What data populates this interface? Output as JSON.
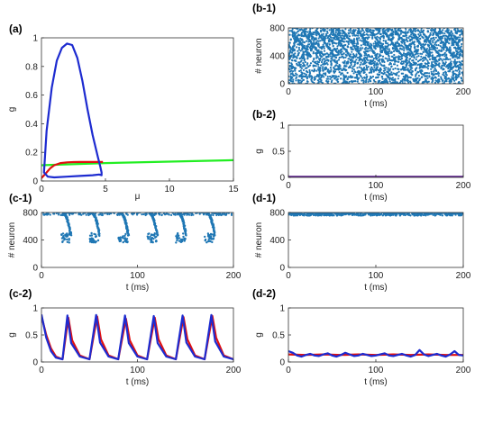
{
  "colors": {
    "blue": "#1d2bd0",
    "red": "#e01010",
    "green": "#22ee22",
    "dots": "#1f77b4",
    "purple": "#5a1b8c"
  },
  "chart_data": [
    {
      "id": "a",
      "panel_label": "(a)",
      "type": "line",
      "xlabel": "μ",
      "ylabel": "g",
      "xlim": [
        0,
        15
      ],
      "ylim": [
        0,
        1
      ],
      "xticks": [
        0,
        5,
        10,
        15
      ],
      "yticks": [
        0,
        0.2,
        0.4,
        0.6,
        0.8,
        1
      ],
      "series": [
        {
          "color_key": "green",
          "x": [
            0,
            5,
            10,
            15
          ],
          "y": [
            0.11,
            0.125,
            0.135,
            0.145
          ]
        },
        {
          "color_key": "red",
          "x": [
            0,
            0.3,
            0.7,
            1,
            1.5,
            2,
            2.5,
            3,
            4,
            4.8
          ],
          "y": [
            0.02,
            0.05,
            0.09,
            0.11,
            0.125,
            0.13,
            0.132,
            0.133,
            0.133,
            0.133
          ]
        },
        {
          "color_key": "blue",
          "closed": true,
          "x": [
            0.2,
            0.4,
            0.8,
            1.2,
            1.6,
            2.0,
            2.4,
            2.8,
            3.2,
            3.6,
            4.0,
            4.4,
            4.6,
            4.7,
            4.7,
            4.5,
            4.0,
            3.0,
            2.0,
            1.0,
            0.5,
            0.2
          ],
          "y": [
            0.06,
            0.35,
            0.65,
            0.84,
            0.93,
            0.96,
            0.95,
            0.86,
            0.7,
            0.5,
            0.32,
            0.17,
            0.1,
            0.06,
            0.04,
            0.045,
            0.04,
            0.035,
            0.03,
            0.025,
            0.03,
            0.06
          ]
        }
      ]
    },
    {
      "id": "b1",
      "panel_label": "(b-1)",
      "type": "scatter",
      "xlabel": "t (ms)",
      "ylabel": "# neuron",
      "xlim": [
        0,
        200
      ],
      "ylim": [
        0,
        800
      ],
      "xticks": [
        0,
        100,
        200
      ],
      "yticks": [
        0,
        400,
        800
      ],
      "pattern": "dense"
    },
    {
      "id": "b2",
      "panel_label": "(b-2)",
      "type": "line",
      "xlabel": "t (ms)",
      "ylabel": "g",
      "xlim": [
        0,
        200
      ],
      "ylim": [
        0,
        1
      ],
      "xticks": [
        0,
        100,
        200
      ],
      "yticks": [
        0,
        0.5,
        1
      ],
      "series": [
        {
          "color_key": "purple",
          "x": [
            0,
            200
          ],
          "y": [
            0.01,
            0.01
          ]
        }
      ]
    },
    {
      "id": "c1",
      "panel_label": "(c-1)",
      "type": "scatter",
      "xlabel": "t (ms)",
      "ylabel": "# neuron",
      "xlim": [
        0,
        200
      ],
      "ylim": [
        0,
        800
      ],
      "xticks": [
        0,
        100,
        200
      ],
      "yticks": [
        0,
        400,
        800
      ],
      "pattern": "bursts",
      "burst_times": [
        28,
        58,
        88,
        118,
        148,
        178
      ]
    },
    {
      "id": "c2",
      "panel_label": "(c-2)",
      "type": "line",
      "xlabel": "t (ms)",
      "ylabel": "g",
      "xlim": [
        0,
        200
      ],
      "ylim": [
        0,
        1
      ],
      "xticks": [
        0,
        100,
        200
      ],
      "yticks": [
        0,
        0.5,
        1
      ],
      "series": [
        {
          "color_key": "red",
          "x": [
            0,
            5,
            10,
            15,
            22,
            28,
            32,
            40,
            50,
            58,
            62,
            70,
            80,
            88,
            92,
            100,
            110,
            118,
            122,
            130,
            140,
            148,
            152,
            160,
            170,
            178,
            182,
            190,
            200
          ],
          "y": [
            0.85,
            0.5,
            0.25,
            0.1,
            0.05,
            0.82,
            0.4,
            0.12,
            0.05,
            0.84,
            0.42,
            0.12,
            0.05,
            0.8,
            0.4,
            0.12,
            0.05,
            0.82,
            0.42,
            0.12,
            0.05,
            0.83,
            0.42,
            0.12,
            0.05,
            0.85,
            0.45,
            0.12,
            0.05
          ]
        },
        {
          "color_key": "blue",
          "x": [
            0,
            5,
            10,
            15,
            22,
            27,
            31,
            40,
            50,
            57,
            61,
            70,
            80,
            87,
            91,
            100,
            110,
            117,
            121,
            130,
            140,
            147,
            151,
            160,
            170,
            177,
            181,
            190,
            200
          ],
          "y": [
            0.88,
            0.45,
            0.2,
            0.08,
            0.05,
            0.86,
            0.35,
            0.1,
            0.05,
            0.87,
            0.36,
            0.1,
            0.05,
            0.86,
            0.35,
            0.1,
            0.05,
            0.85,
            0.35,
            0.1,
            0.05,
            0.86,
            0.36,
            0.1,
            0.05,
            0.87,
            0.38,
            0.1,
            0.05
          ]
        }
      ]
    },
    {
      "id": "d1",
      "panel_label": "(d-1)",
      "type": "scatter",
      "xlabel": "t (ms)",
      "ylabel": "# neuron",
      "xlim": [
        0,
        200
      ],
      "ylim": [
        0,
        800
      ],
      "xticks": [
        0,
        100,
        200
      ],
      "yticks": [
        0,
        400,
        800
      ],
      "pattern": "band"
    },
    {
      "id": "d2",
      "panel_label": "(d-2)",
      "type": "line",
      "xlabel": "t (ms)",
      "ylabel": "g",
      "xlim": [
        0,
        200
      ],
      "ylim": [
        0,
        1
      ],
      "xticks": [
        0,
        100,
        200
      ],
      "yticks": [
        0,
        0.5,
        1
      ],
      "series": [
        {
          "color_key": "red",
          "x": [
            0,
            20,
            40,
            60,
            80,
            100,
            120,
            140,
            160,
            180,
            200
          ],
          "y": [
            0.14,
            0.13,
            0.14,
            0.13,
            0.14,
            0.13,
            0.14,
            0.13,
            0.14,
            0.13,
            0.13
          ]
        },
        {
          "color_key": "blue",
          "x": [
            0,
            5,
            10,
            15,
            20,
            25,
            30,
            35,
            40,
            45,
            50,
            55,
            60,
            65,
            70,
            75,
            80,
            85,
            90,
            95,
            100,
            105,
            110,
            115,
            120,
            125,
            130,
            135,
            140,
            145,
            150,
            155,
            160,
            165,
            170,
            175,
            180,
            185,
            190,
            195,
            200
          ],
          "y": [
            0.2,
            0.17,
            0.12,
            0.1,
            0.13,
            0.15,
            0.12,
            0.11,
            0.14,
            0.16,
            0.12,
            0.1,
            0.13,
            0.17,
            0.14,
            0.11,
            0.12,
            0.15,
            0.13,
            0.11,
            0.12,
            0.14,
            0.16,
            0.12,
            0.11,
            0.13,
            0.15,
            0.12,
            0.1,
            0.13,
            0.22,
            0.14,
            0.11,
            0.13,
            0.15,
            0.12,
            0.1,
            0.14,
            0.2,
            0.13,
            0.12
          ]
        }
      ]
    }
  ]
}
